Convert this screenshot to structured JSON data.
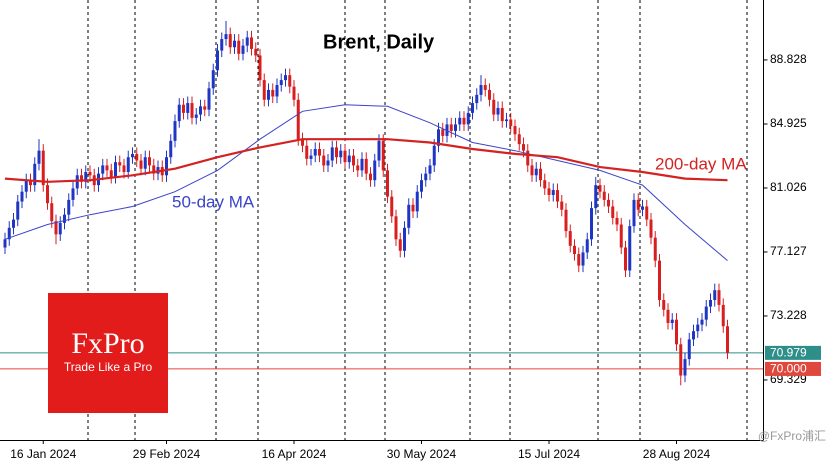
{
  "chart_data": {
    "type": "candlestick",
    "title": "Brent, Daily",
    "categories": [
      null,
      null,
      null,
      null,
      null,
      null,
      null,
      null,
      null,
      "16 Jan 2024",
      null,
      null,
      null,
      null,
      null,
      null,
      null,
      null,
      null,
      null,
      null,
      null,
      null,
      null,
      null,
      null,
      null,
      null,
      null,
      null,
      null,
      null,
      null,
      null,
      null,
      null,
      null,
      null,
      "29 Feb 2024",
      null,
      null,
      null,
      null,
      null,
      null,
      null,
      null,
      null,
      null,
      null,
      null,
      null,
      null,
      null,
      null,
      null,
      null,
      null,
      null,
      null,
      null,
      null,
      null,
      null,
      null,
      null,
      null,
      null,
      "16 Apr 2024",
      null,
      null,
      null,
      null,
      null,
      null,
      null,
      null,
      null,
      null,
      null,
      null,
      null,
      null,
      null,
      null,
      null,
      null,
      null,
      null,
      null,
      null,
      null,
      null,
      null,
      null,
      null,
      null,
      null,
      "30 May 2024",
      null,
      null,
      null,
      null,
      null,
      null,
      null,
      null,
      null,
      null,
      null,
      null,
      null,
      null,
      null,
      null,
      null,
      null,
      null,
      null,
      null,
      null,
      null,
      null,
      null,
      null,
      null,
      null,
      null,
      "15 Jul 2024",
      null,
      null,
      null,
      null,
      null,
      null,
      null,
      null,
      null,
      null,
      null,
      null,
      null,
      null,
      null,
      null,
      null,
      null,
      null,
      null,
      null,
      null,
      null,
      null,
      null,
      null,
      null,
      null,
      null,
      "28 Aug 2024",
      null,
      null,
      null,
      null,
      null,
      null,
      null,
      null,
      null,
      null,
      null,
      null
    ],
    "open": [
      77.4,
      77.9,
      78.6,
      79.1,
      80.2,
      80.8,
      81.5,
      81.2,
      82.5,
      83.3,
      81.2,
      80.1,
      79.0,
      78.2,
      78.9,
      79.4,
      80.3,
      81.0,
      81.8,
      81.4,
      82.0,
      81.8,
      81.2,
      81.9,
      82.4,
      82.1,
      81.7,
      82.6,
      82.4,
      82.0,
      82.9,
      83.1,
      82.7,
      82.2,
      82.9,
      82.4,
      81.9,
      82.3,
      81.8,
      82.9,
      83.9,
      85.1,
      86.1,
      85.6,
      86.2,
      85.3,
      85.5,
      86.0,
      85.8,
      87.1,
      88.2,
      89.4,
      90.1,
      90.4,
      89.6,
      90.0,
      89.2,
      89.7,
      90.2,
      89.5,
      89.1,
      87.6,
      86.4,
      87.0,
      86.6,
      87.3,
      87.6,
      87.9,
      87.2,
      86.4,
      84.0,
      83.6,
      82.8,
      83.0,
      83.4,
      83.0,
      82.4,
      82.7,
      83.5,
      82.9,
      83.3,
      82.6,
      83.0,
      82.4,
      82.1,
      82.8,
      81.9,
      81.5,
      82.7,
      83.9,
      82.1,
      80.5,
      79.3,
      77.9,
      77.2,
      78.6,
      80.0,
      79.6,
      80.8,
      81.5,
      81.9,
      82.4,
      83.6,
      84.6,
      84.2,
      84.9,
      84.5,
      84.9,
      85.3,
      84.9,
      85.6,
      86.2,
      86.7,
      87.3,
      87.0,
      86.4,
      85.5,
      85.9,
      85.1,
      85.2,
      84.8,
      84.3,
      83.7,
      83.3,
      82.4,
      81.8,
      82.2,
      81.5,
      81.0,
      80.6,
      80.9,
      80.2,
      79.7,
      78.4,
      77.5,
      77.0,
      76.3,
      77.1,
      77.9,
      79.8,
      81.2,
      80.8,
      80.3,
      79.9,
      79.2,
      78.8,
      77.4,
      76.0,
      78.7,
      80.3,
      79.7,
      79.9,
      79.1,
      78.0,
      76.6,
      74.2,
      73.6,
      72.8,
      73.0,
      71.5,
      69.6,
      70.6,
      71.8,
      72.3,
      72.7,
      73.0,
      73.8,
      74.2,
      74.8,
      73.9,
      72.6
    ],
    "high": [
      78.3,
      79.0,
      79.5,
      80.6,
      81.2,
      81.9,
      81.9,
      82.9,
      84.0,
      83.7,
      81.6,
      80.5,
      79.4,
      79.3,
      79.8,
      80.7,
      81.4,
      82.2,
      82.2,
      82.4,
      82.4,
      82.2,
      82.3,
      82.8,
      82.8,
      82.5,
      83.0,
      83.0,
      82.8,
      83.3,
      83.5,
      83.5,
      83.1,
      83.3,
      83.3,
      82.8,
      82.7,
      82.7,
      83.3,
      84.3,
      85.5,
      86.5,
      86.5,
      86.6,
      86.6,
      85.9,
      86.4,
      86.4,
      87.5,
      88.6,
      89.8,
      90.5,
      91.2,
      90.8,
      90.4,
      90.4,
      90.1,
      90.6,
      90.6,
      89.9,
      89.5,
      88.0,
      87.4,
      87.4,
      87.7,
      88.0,
      88.3,
      88.3,
      87.6,
      86.8,
      84.4,
      84.0,
      83.4,
      83.8,
      83.8,
      83.4,
      83.1,
      83.9,
      83.9,
      83.7,
      83.7,
      83.4,
      83.4,
      82.8,
      83.2,
      83.2,
      82.3,
      83.1,
      84.3,
      84.3,
      82.5,
      80.9,
      79.7,
      78.3,
      79.0,
      80.4,
      80.4,
      81.2,
      81.9,
      82.3,
      82.8,
      84.0,
      85.0,
      85.0,
      85.3,
      85.3,
      85.3,
      85.7,
      85.7,
      86.0,
      86.6,
      87.1,
      87.9,
      87.7,
      87.4,
      86.8,
      86.3,
      86.3,
      85.6,
      85.6,
      85.2,
      84.7,
      84.1,
      83.7,
      82.8,
      82.6,
      82.6,
      81.9,
      81.4,
      81.3,
      81.3,
      80.6,
      80.1,
      78.8,
      77.9,
      77.4,
      77.5,
      78.3,
      80.2,
      81.7,
      81.6,
      81.2,
      80.7,
      80.3,
      79.6,
      79.2,
      77.8,
      79.1,
      80.7,
      80.7,
      80.3,
      80.3,
      79.5,
      78.4,
      77.0,
      74.6,
      74.0,
      73.4,
      73.4,
      71.9,
      71.0,
      72.2,
      72.7,
      73.1,
      73.4,
      74.2,
      74.6,
      75.2,
      75.2,
      74.3,
      73.0
    ],
    "low": [
      77.0,
      77.5,
      78.2,
      78.7,
      79.8,
      80.4,
      80.8,
      80.8,
      82.1,
      80.8,
      79.7,
      78.6,
      77.6,
      77.8,
      78.5,
      79.0,
      79.9,
      80.6,
      81.0,
      81.0,
      81.4,
      80.8,
      80.8,
      81.5,
      81.7,
      81.3,
      81.3,
      82.0,
      81.6,
      81.6,
      82.5,
      82.3,
      81.8,
      81.8,
      82.0,
      81.5,
      81.5,
      81.4,
      81.4,
      82.5,
      83.5,
      84.7,
      85.2,
      85.2,
      84.9,
      84.9,
      85.1,
      85.4,
      85.4,
      86.7,
      87.8,
      89.0,
      89.7,
      89.2,
      89.2,
      88.8,
      88.8,
      89.3,
      89.1,
      88.7,
      87.2,
      86.0,
      86.0,
      86.2,
      86.2,
      86.9,
      87.2,
      86.8,
      86.0,
      83.6,
      83.2,
      82.4,
      82.4,
      82.6,
      82.6,
      82.0,
      82.0,
      82.3,
      82.5,
      82.5,
      82.2,
      82.2,
      82.0,
      81.7,
      81.7,
      81.5,
      81.1,
      81.1,
      82.3,
      81.7,
      80.1,
      78.9,
      77.5,
      76.8,
      76.8,
      78.2,
      79.2,
      79.2,
      80.4,
      81.1,
      81.5,
      82.0,
      83.2,
      83.8,
      83.8,
      84.1,
      84.1,
      84.5,
      84.5,
      84.5,
      85.2,
      85.8,
      86.3,
      86.6,
      86.0,
      85.1,
      85.1,
      84.7,
      84.7,
      84.4,
      83.9,
      83.3,
      82.9,
      82.0,
      81.4,
      81.4,
      81.1,
      80.6,
      80.2,
      80.2,
      79.8,
      79.3,
      78.0,
      77.1,
      76.6,
      75.9,
      75.9,
      76.7,
      77.5,
      79.4,
      80.4,
      79.9,
      79.5,
      78.8,
      78.4,
      77.0,
      75.6,
      75.6,
      78.3,
      79.3,
      79.3,
      78.7,
      77.6,
      76.2,
      73.8,
      73.2,
      72.4,
      72.4,
      71.1,
      69.0,
      69.2,
      70.2,
      71.4,
      71.9,
      72.3,
      72.6,
      73.4,
      73.8,
      73.5,
      72.2,
      70.6
    ],
    "close": [
      77.9,
      78.6,
      79.1,
      80.2,
      80.8,
      81.5,
      81.2,
      82.5,
      83.3,
      81.2,
      80.1,
      79.0,
      78.2,
      78.9,
      79.4,
      80.3,
      81.0,
      81.8,
      81.4,
      82.0,
      81.8,
      81.2,
      81.9,
      82.4,
      82.1,
      81.7,
      82.6,
      82.4,
      82.0,
      82.9,
      83.1,
      82.7,
      82.2,
      82.9,
      82.4,
      81.9,
      82.3,
      81.8,
      82.9,
      83.9,
      85.1,
      86.1,
      85.6,
      86.2,
      85.3,
      85.5,
      86.0,
      85.8,
      87.1,
      88.2,
      89.4,
      90.1,
      90.4,
      89.6,
      90.0,
      89.2,
      89.7,
      90.2,
      89.5,
      89.1,
      87.6,
      86.4,
      87.0,
      86.6,
      87.3,
      87.6,
      87.9,
      87.2,
      86.4,
      84.0,
      83.6,
      82.8,
      83.0,
      83.4,
      83.0,
      82.4,
      82.7,
      83.5,
      82.9,
      83.3,
      82.6,
      83.0,
      82.4,
      82.1,
      82.8,
      81.9,
      81.5,
      82.7,
      83.9,
      82.1,
      80.5,
      79.3,
      77.9,
      77.2,
      78.6,
      80.0,
      79.6,
      80.8,
      81.5,
      81.9,
      82.4,
      83.6,
      84.6,
      84.2,
      84.9,
      84.5,
      84.9,
      85.3,
      84.9,
      85.6,
      86.2,
      86.7,
      87.3,
      87.0,
      86.4,
      85.5,
      85.9,
      85.1,
      85.2,
      84.8,
      84.3,
      83.7,
      83.3,
      82.4,
      81.8,
      82.2,
      81.5,
      81.0,
      80.6,
      80.9,
      80.2,
      79.7,
      78.4,
      77.5,
      77.0,
      76.3,
      77.1,
      77.9,
      79.8,
      81.2,
      80.8,
      80.3,
      79.9,
      79.2,
      78.8,
      77.4,
      76.0,
      78.7,
      80.3,
      79.7,
      79.9,
      79.1,
      78.0,
      76.6,
      74.2,
      73.6,
      72.8,
      73.0,
      71.5,
      69.6,
      70.6,
      71.8,
      72.3,
      72.7,
      73.0,
      73.8,
      74.2,
      74.8,
      73.9,
      72.6,
      70.98
    ],
    "up_color": "#1f35c4",
    "down_color": "#d81e1e",
    "series": [
      {
        "name": "50-day MA",
        "color": "#3a44c8",
        "x": [
          0,
          10,
          20,
          30,
          40,
          50,
          60,
          70,
          80,
          90,
          100,
          110,
          120,
          130,
          140,
          150,
          160,
          170
        ],
        "values": [
          77.9,
          78.8,
          79.4,
          79.9,
          80.8,
          82.1,
          84.0,
          85.7,
          86.1,
          86.0,
          85.0,
          83.8,
          83.3,
          82.7,
          82.1,
          81.2,
          78.8,
          76.6
        ]
      },
      {
        "name": "200-day MA",
        "color": "#d42222",
        "x": [
          0,
          10,
          20,
          30,
          40,
          50,
          60,
          70,
          80,
          90,
          100,
          110,
          120,
          130,
          140,
          150,
          160,
          170
        ],
        "values": [
          81.6,
          81.4,
          81.5,
          81.8,
          82.2,
          82.9,
          83.5,
          84.0,
          84.0,
          84.0,
          83.8,
          83.4,
          83.1,
          82.9,
          82.3,
          82.0,
          81.6,
          81.5
        ]
      }
    ],
    "ylim": [
      65.67,
      92.48
    ],
    "yticks": [
      {
        "value": 69.329,
        "label": "69.329"
      },
      {
        "value": 73.228,
        "label": "73.228"
      },
      {
        "value": 77.127,
        "label": "77.127"
      },
      {
        "value": 81.026,
        "label": "81.026"
      },
      {
        "value": 84.925,
        "label": "84.925"
      },
      {
        "value": 88.828,
        "label": "88.828"
      }
    ],
    "levels": [
      70.979,
      {
        "value": 70,
        "label": "70.000"
      }
    ],
    "level_colors": [
      "#2e8f8a",
      "#e0473d"
    ],
    "logo": {
      "name": "FxPro",
      "tagline": "Trade Like a Pro"
    },
    "watermark": "@FxPro浦汇"
  }
}
